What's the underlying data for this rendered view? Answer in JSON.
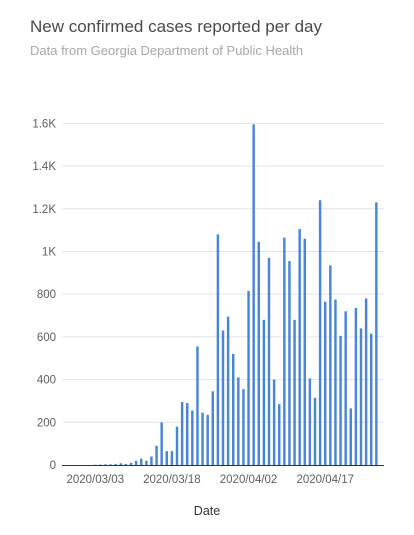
{
  "title": "New confirmed cases reported per day",
  "subtitle": "Data from Georgia Department of Public Health",
  "colors": {
    "bar": "#4a86d8",
    "grid": "#e3e3e3",
    "axis": "#333333"
  },
  "chart_data": {
    "type": "bar",
    "xlabel": "Date",
    "ylabel": "",
    "ylim": [
      0,
      1700
    ],
    "grid": true,
    "y_ticks": [
      0,
      200,
      400,
      600,
      800,
      1000,
      1200,
      1400,
      1600
    ],
    "y_tick_labels": [
      "0",
      "200",
      "400",
      "600",
      "800",
      "1K",
      "1.2K",
      "1.4K",
      "1.6K"
    ],
    "x_tick_labels": [
      {
        "category": "2020/03/03",
        "label": "2020/03/03"
      },
      {
        "category": "2020/03/18",
        "label": "2020/03/18"
      },
      {
        "category": "2020/04/02",
        "label": "2020/04/02"
      },
      {
        "category": "2020/04/17",
        "label": "2020/04/17"
      }
    ],
    "categories": [
      "2020/02/26",
      "2020/02/27",
      "2020/02/28",
      "2020/02/29",
      "2020/03/01",
      "2020/03/02",
      "2020/03/03",
      "2020/03/04",
      "2020/03/05",
      "2020/03/06",
      "2020/03/07",
      "2020/03/08",
      "2020/03/09",
      "2020/03/10",
      "2020/03/11",
      "2020/03/12",
      "2020/03/13",
      "2020/03/14",
      "2020/03/15",
      "2020/03/16",
      "2020/03/17",
      "2020/03/18",
      "2020/03/19",
      "2020/03/20",
      "2020/03/21",
      "2020/03/22",
      "2020/03/23",
      "2020/03/24",
      "2020/03/25",
      "2020/03/26",
      "2020/03/27",
      "2020/03/28",
      "2020/03/29",
      "2020/03/30",
      "2020/03/31",
      "2020/04/01",
      "2020/04/02",
      "2020/04/03",
      "2020/04/04",
      "2020/04/05",
      "2020/04/06",
      "2020/04/07",
      "2020/04/08",
      "2020/04/09",
      "2020/04/10",
      "2020/04/11",
      "2020/04/12",
      "2020/04/13",
      "2020/04/14",
      "2020/04/15",
      "2020/04/16",
      "2020/04/17",
      "2020/04/18",
      "2020/04/19",
      "2020/04/20",
      "2020/04/21",
      "2020/04/22",
      "2020/04/23",
      "2020/04/24",
      "2020/04/25",
      "2020/04/26",
      "2020/04/27",
      "2020/04/28"
    ],
    "values": [
      0,
      0,
      0,
      0,
      0,
      0,
      1,
      2,
      3,
      3,
      5,
      8,
      5,
      10,
      20,
      30,
      20,
      40,
      90,
      200,
      65,
      65,
      180,
      295,
      290,
      255,
      555,
      245,
      235,
      345,
      1080,
      630,
      695,
      520,
      410,
      355,
      815,
      1595,
      1045,
      680,
      970,
      400,
      285,
      1065,
      955,
      680,
      1105,
      1060,
      405,
      315,
      1240,
      765,
      935,
      775,
      605,
      720,
      265,
      735,
      640,
      780,
      615,
      1230,
      0
    ]
  }
}
